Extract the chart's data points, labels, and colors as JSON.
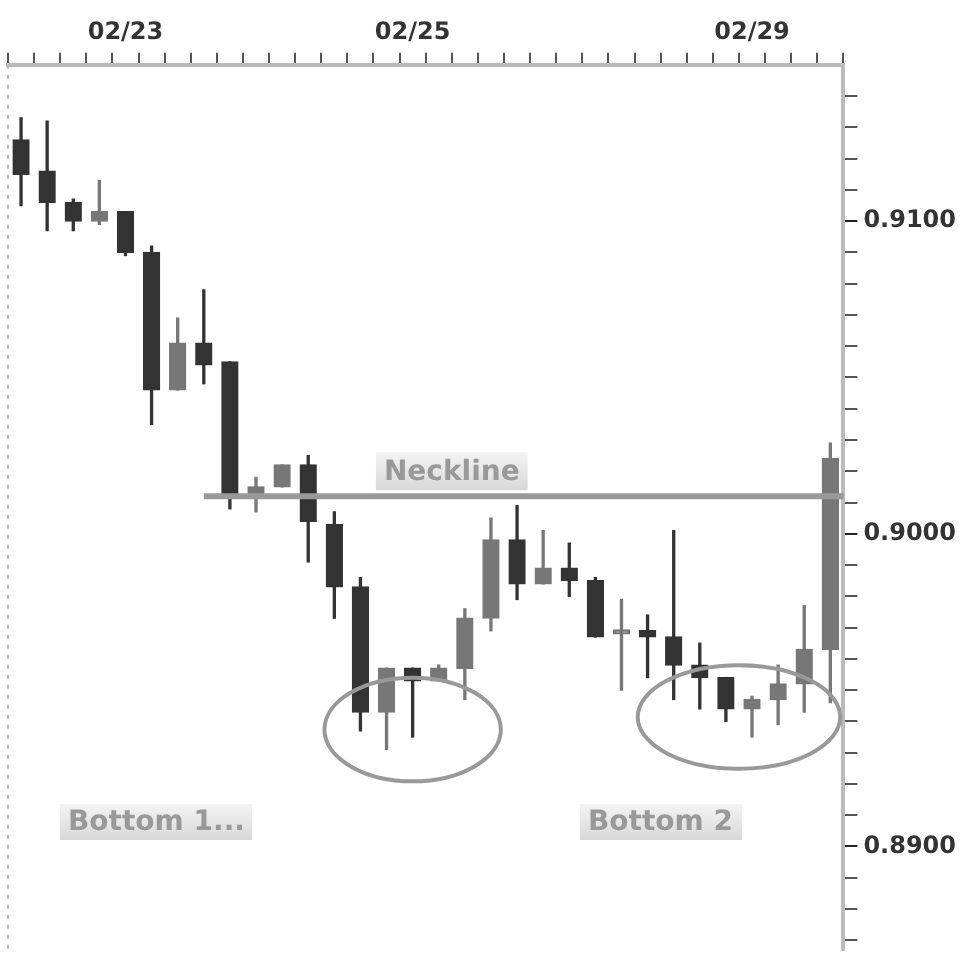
{
  "chart_data": {
    "type": "candlestick",
    "categories": [
      null,
      null,
      null,
      null,
      "02/23",
      null,
      null,
      null,
      null,
      null,
      null,
      null,
      null,
      null,
      null,
      "02/25",
      null,
      null,
      null,
      null,
      null,
      null,
      null,
      null,
      null,
      null,
      null,
      null,
      "02/29",
      null,
      null,
      null
    ],
    "ohlc": [
      [
        0.9126,
        0.9133,
        0.9105,
        0.9115
      ],
      [
        0.9116,
        0.9132,
        0.9097,
        0.9106
      ],
      [
        0.9106,
        0.9107,
        0.9097,
        0.91
      ],
      [
        0.91,
        0.9113,
        0.9099,
        0.9103
      ],
      [
        0.9103,
        0.9103,
        0.9089,
        0.909
      ],
      [
        0.909,
        0.9092,
        0.9035,
        0.9046
      ],
      [
        0.9046,
        0.9069,
        0.9046,
        0.9061
      ],
      [
        0.9061,
        0.9078,
        0.9048,
        0.9054
      ],
      [
        0.9055,
        0.9055,
        0.9008,
        0.9012
      ],
      [
        0.9012,
        0.9018,
        0.9007,
        0.9015
      ],
      [
        0.9015,
        0.9022,
        0.9015,
        0.9022
      ],
      [
        0.9022,
        0.9025,
        0.8991,
        0.9004
      ],
      [
        0.9003,
        0.9007,
        0.8973,
        0.8983
      ],
      [
        0.8983,
        0.8986,
        0.8937,
        0.8943
      ],
      [
        0.8943,
        0.8957,
        0.8931,
        0.8957
      ],
      [
        0.8957,
        0.8957,
        0.8935,
        0.8953
      ],
      [
        0.8953,
        0.8958,
        0.8953,
        0.8957
      ],
      [
        0.8957,
        0.8976,
        0.8947,
        0.8973
      ],
      [
        0.8973,
        0.9005,
        0.8969,
        0.8998
      ],
      [
        0.8998,
        0.9009,
        0.8979,
        0.8984
      ],
      [
        0.8984,
        0.9001,
        0.8984,
        0.8989
      ],
      [
        0.8989,
        0.8997,
        0.898,
        0.8985
      ],
      [
        0.8985,
        0.8986,
        0.8967,
        0.8967
      ],
      [
        0.8968,
        0.8979,
        0.895,
        0.8969
      ],
      [
        0.8969,
        0.8974,
        0.8954,
        0.8967
      ],
      [
        0.8967,
        0.9001,
        0.8947,
        0.8958
      ],
      [
        0.8958,
        0.8965,
        0.8944,
        0.8954
      ],
      [
        0.8954,
        0.8954,
        0.894,
        0.8944
      ],
      [
        0.8944,
        0.8948,
        0.8935,
        0.8947
      ],
      [
        0.8947,
        0.8958,
        0.8939,
        0.8952
      ],
      [
        0.8952,
        0.8977,
        0.8943,
        0.8963
      ],
      [
        0.8963,
        0.9029,
        0.8946,
        0.9024
      ]
    ],
    "colors": [
      "#333333",
      "#333333",
      "#333333",
      "#777777",
      "#333333",
      "#333333",
      "#777777",
      "#333333",
      "#333333",
      "#777777",
      "#777777",
      "#333333",
      "#333333",
      "#333333",
      "#777777",
      "#333333",
      "#777777",
      "#777777",
      "#777777",
      "#333333",
      "#777777",
      "#333333",
      "#333333",
      "#777777",
      "#333333",
      "#333333",
      "#333333",
      "#333333",
      "#777777",
      "#777777",
      "#777777",
      "#777777"
    ],
    "ylim": [
      0.8867,
      0.915
    ],
    "yticks": [
      {
        "value": 0.887,
        "label": null
      },
      {
        "value": 0.888,
        "label": null
      },
      {
        "value": 0.889,
        "label": null
      },
      {
        "value": 0.89,
        "label": "0.8900"
      },
      {
        "value": 0.891,
        "label": null
      },
      {
        "value": 0.892,
        "label": null
      },
      {
        "value": 0.893,
        "label": null
      },
      {
        "value": 0.894,
        "label": null
      },
      {
        "value": 0.895,
        "label": null
      },
      {
        "value": 0.896,
        "label": null
      },
      {
        "value": 0.897,
        "label": null
      },
      {
        "value": 0.898,
        "label": null
      },
      {
        "value": 0.899,
        "label": null
      },
      {
        "value": 0.9,
        "label": "0.9000"
      },
      {
        "value": 0.901,
        "label": null
      },
      {
        "value": 0.902,
        "label": null
      },
      {
        "value": 0.903,
        "label": null
      },
      {
        "value": 0.904,
        "label": null
      },
      {
        "value": 0.905,
        "label": null
      },
      {
        "value": 0.906,
        "label": null
      },
      {
        "value": 0.907,
        "label": null
      },
      {
        "value": 0.908,
        "label": null
      },
      {
        "value": 0.909,
        "label": null
      },
      {
        "value": 0.91,
        "label": "0.9100"
      },
      {
        "value": 0.911,
        "label": null
      },
      {
        "value": 0.912,
        "label": null
      },
      {
        "value": 0.913,
        "label": null
      },
      {
        "value": 0.914,
        "label": null
      }
    ],
    "ref_lines": [
      {
        "axis": "y",
        "value": 0.9012,
        "label": "Neckline",
        "color": "#999999"
      }
    ],
    "annotations": [
      "Bottom 1...",
      "Bottom 2"
    ],
    "grid": false,
    "legend": false
  }
}
